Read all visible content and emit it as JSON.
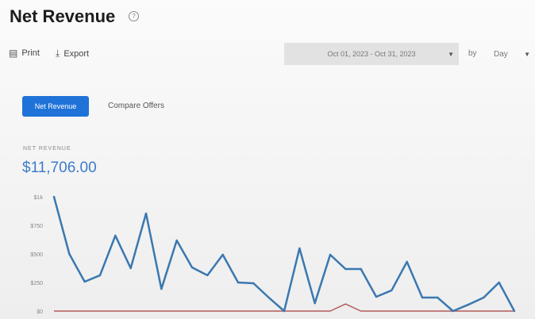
{
  "header": {
    "title": "Net Revenue",
    "help_icon": "question-circle-icon"
  },
  "toolbar": {
    "print_label": "Print",
    "export_label": "Export"
  },
  "filters": {
    "date_range": "Oct 01, 2023 - Oct 31, 2023",
    "by_label": "by",
    "granularity": "Day"
  },
  "tabs": [
    {
      "label": "Net Revenue",
      "active": true
    },
    {
      "label": "Compare Offers",
      "active": false
    }
  ],
  "kpi": {
    "label": "NET REVENUE",
    "value": "$11,706.00"
  },
  "colors": {
    "accent": "#1f73d8",
    "series_primary": "#3a78b0",
    "series_secondary": "#b35a5a"
  },
  "chart_data": {
    "type": "line",
    "x": [
      1,
      2,
      3,
      4,
      5,
      6,
      7,
      8,
      9,
      10,
      11,
      12,
      13,
      14,
      15,
      16,
      17,
      18,
      19,
      20,
      21,
      22,
      23,
      24,
      25,
      26,
      27,
      28,
      29,
      30,
      31
    ],
    "ylim": [
      0,
      1000
    ],
    "yticks": [
      "$0",
      "$250",
      "$500",
      "$750",
      "$1k"
    ],
    "series": [
      {
        "values": [
          1000,
          500,
          257,
          313,
          660,
          375,
          854,
          194,
          618,
          382,
          313,
          493,
          250,
          243,
          118,
          0,
          549,
          69,
          493,
          368,
          368,
          125,
          181,
          431,
          118,
          118,
          0,
          56,
          118,
          250,
          0
        ],
        "color": "#3a78b0"
      },
      {
        "values": [
          0,
          0,
          0,
          0,
          0,
          0,
          0,
          0,
          0,
          0,
          0,
          0,
          0,
          0,
          0,
          0,
          0,
          0,
          0,
          62,
          0,
          0,
          0,
          0,
          0,
          0,
          0,
          0,
          0,
          0,
          0
        ],
        "color": "#b35a5a"
      }
    ]
  }
}
